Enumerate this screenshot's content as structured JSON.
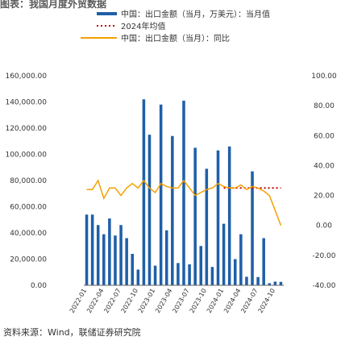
{
  "chart_data": {
    "type": "bar",
    "title": "图表：我国月度外贸数据",
    "source": "资料来源：Wind，联储证券研究院",
    "categories": [
      "2022-01",
      "2022-02",
      "2022-03",
      "2022-04",
      "2022-05",
      "2022-06",
      "2022-07",
      "2022-08",
      "2022-09",
      "2022-10",
      "2022-11",
      "2022-12",
      "2023-01",
      "2023-02",
      "2023-03",
      "2023-04",
      "2023-05",
      "2023-06",
      "2023-07",
      "2023-08",
      "2023-09",
      "2023-10",
      "2023-11",
      "2023-12",
      "2024-01",
      "2024-02",
      "2024-03",
      "2024-04",
      "2024-05",
      "2024-06",
      "2024-07",
      "2024-08",
      "2024-09",
      "2024-10",
      "2024-11"
    ],
    "x_tick_labels": [
      "2022-01",
      "2022-04",
      "2022-07",
      "2022-10",
      "2023-01",
      "2023-04",
      "2023-07",
      "2023-10",
      "2024-01",
      "2024-04",
      "2024-07",
      "2024-10"
    ],
    "series": [
      {
        "name": "中国：出口金额（当月，万美元）：当月值",
        "axis": "left",
        "type": "bar",
        "values": [
          54000,
          54000,
          46000,
          39000,
          51000,
          38000,
          46000,
          36000,
          24000,
          12000,
          142000,
          115000,
          15000,
          138000,
          42000,
          114000,
          17000,
          141000,
          16000,
          105000,
          30000,
          89000,
          14000,
          103000,
          47000,
          106000,
          20000,
          39000,
          6500,
          87000,
          6300,
          36000,
          1600,
          2800,
          2600
        ]
      },
      {
        "name": "2024年均值",
        "axis": "right",
        "type": "dotted_line",
        "values": [
          null,
          null,
          null,
          null,
          null,
          null,
          null,
          null,
          null,
          null,
          null,
          null,
          null,
          null,
          null,
          null,
          null,
          null,
          null,
          null,
          null,
          null,
          null,
          null,
          25,
          25,
          25,
          25,
          25,
          25,
          25,
          25,
          25,
          25,
          25
        ]
      },
      {
        "name": "中国：出口金额（当月）：同比",
        "axis": "right",
        "type": "line",
        "values": [
          24,
          24,
          30,
          18,
          25,
          25,
          20,
          25,
          28,
          25,
          30,
          25,
          22,
          28,
          26,
          25,
          25,
          30,
          25,
          20,
          22,
          24,
          25,
          28,
          26,
          25,
          25,
          27,
          24,
          26,
          25,
          23,
          20,
          10,
          0
        ]
      }
    ],
    "y_left": {
      "min": 0,
      "max": 160000,
      "ticks": [
        "0.00",
        "20,000.00",
        "40,000.00",
        "60,000.00",
        "80,000.00",
        "100,000.00",
        "120,000.00",
        "140,000.00",
        "160,000.00"
      ]
    },
    "y_right": {
      "min": -40,
      "max": 100,
      "ticks": [
        "-40.00",
        "-20.00",
        "0.00",
        "20.00",
        "40.00",
        "60.00",
        "80.00",
        "100.00"
      ]
    },
    "legend_position": "top",
    "grid": false,
    "colors": {
      "bar": "#1f5fa8",
      "line": "#f5a000",
      "avg": "#c00000"
    }
  }
}
